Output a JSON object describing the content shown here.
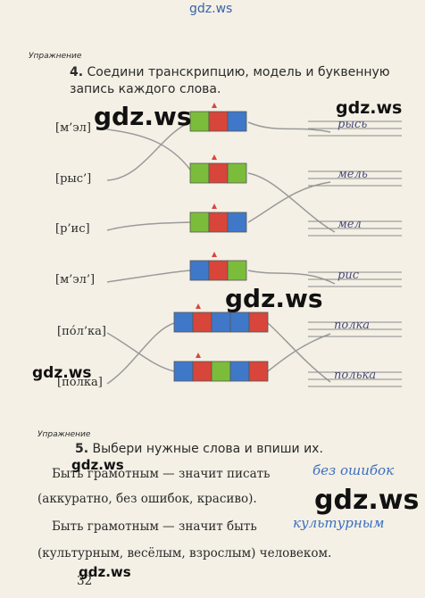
{
  "watermarks": [
    "gdz.ws",
    "gdz.ws",
    "gdz.ws",
    "gdz.ws",
    "gdz.ws",
    "gdz.ws",
    "gdz.ws",
    "gdz.ws"
  ],
  "exercise4": {
    "label": "Упражнение",
    "number": "4.",
    "task": "Соедини транскрипцию, модель и буквенную запись каждого слова.",
    "transcriptions": [
      "[м’эл]",
      "[рыс’]",
      "[р’ис]",
      "[м’эл’]",
      "[пóл’ка]",
      "[пóлка]"
    ],
    "answers": [
      "рысь",
      "мель",
      "мел",
      "рис",
      "полка",
      "полька"
    ]
  },
  "exercise5": {
    "label": "Упражнение",
    "number": "5.",
    "task": "Выбери нужные слова и впиши их.",
    "sentence1": "Быть грамотным — значит писать",
    "answer1": "без ошибок",
    "options1": "(аккуратно, без ошибок, красиво).",
    "sentence2": "Быть грамотным — значит быть",
    "answer2": "культурным",
    "options2": "(культурным, весёлым, взрослым) человеком."
  },
  "page_number": "32"
}
